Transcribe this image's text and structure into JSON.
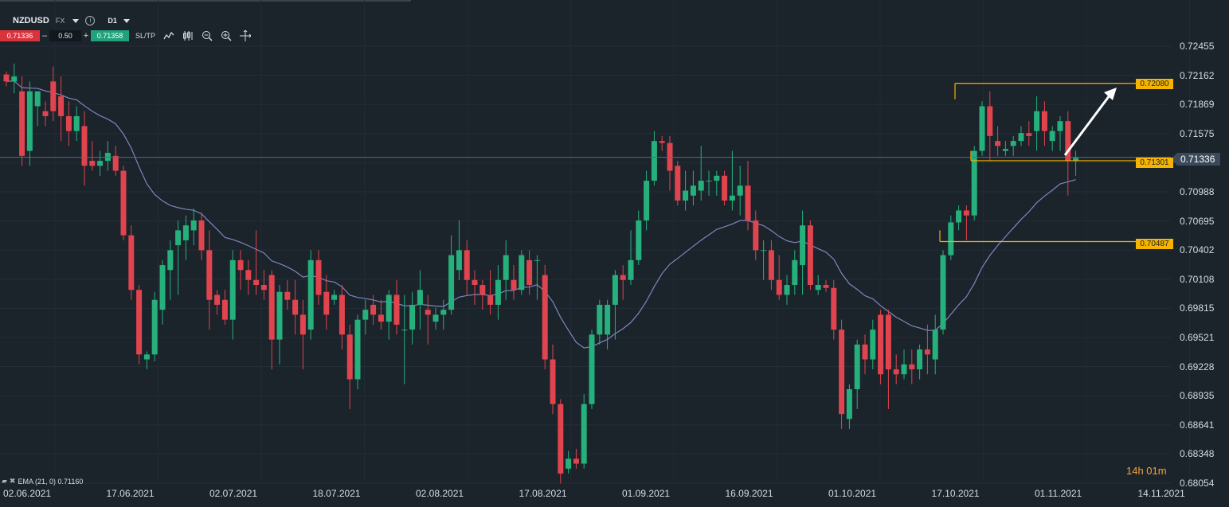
{
  "toolbar": {
    "symbol": "NZDUSD",
    "market": "FX",
    "timeframe": "D1",
    "sell_price": "0.71336",
    "lot_size": "0.50",
    "buy_price": "0.71358",
    "minus": "–",
    "plus": "+",
    "sltp_label": "SL/TP",
    "icons": [
      "line-chart-icon",
      "candles-icon",
      "zoom-out-icon",
      "zoom-in-icon",
      "crosshair-icon"
    ]
  },
  "current_price": "0.71336",
  "levels": [
    "0.72080",
    "0.71301",
    "0.70487"
  ],
  "timer": "14h 01m",
  "ema_legend": "EMA (21, 0) 0.71160",
  "colors": {
    "background": "#1b232b",
    "bull": "#26b07c",
    "bear": "#e0444e",
    "ema": "#7f87c0",
    "level": "#f4b400",
    "arrow": "#ffffff",
    "current_price_line": "#5a6b7c"
  },
  "chart_data": {
    "type": "candlestick",
    "symbol": "NZDUSD",
    "timeframe": "D1",
    "y_ticks": [
      "0.72455",
      "0.72162",
      "0.71869",
      "0.71575",
      "0.71282",
      "0.70988",
      "0.70695",
      "0.70402",
      "0.70108",
      "0.69815",
      "0.69521",
      "0.69228",
      "0.68935",
      "0.68641",
      "0.68348",
      "0.68054"
    ],
    "x_ticks": [
      "02.06.2021",
      "17.06.2021",
      "02.07.2021",
      "18.07.2021",
      "02.08.2021",
      "17.08.2021",
      "01.09.2021",
      "16.09.2021",
      "01.10.2021",
      "17.10.2021",
      "01.11.2021",
      "14.11.2021"
    ],
    "ylim": [
      0.68054,
      0.72455
    ],
    "current_price": 0.71336,
    "ema": {
      "period": 21,
      "value": 0.7116
    },
    "candles": [
      [
        0.7217,
        0.722,
        0.7205,
        0.721
      ],
      [
        0.721,
        0.7228,
        0.7198,
        0.7215
      ],
      [
        0.72,
        0.7215,
        0.7125,
        0.7135
      ],
      [
        0.714,
        0.721,
        0.7125,
        0.72
      ],
      [
        0.7185,
        0.72,
        0.7165,
        0.72
      ],
      [
        0.718,
        0.719,
        0.7165,
        0.7175
      ],
      [
        0.721,
        0.7225,
        0.717,
        0.718
      ],
      [
        0.7195,
        0.7215,
        0.715,
        0.7175
      ],
      [
        0.7175,
        0.719,
        0.7145,
        0.716
      ],
      [
        0.716,
        0.7185,
        0.715,
        0.7175
      ],
      [
        0.7165,
        0.718,
        0.7105,
        0.7125
      ],
      [
        0.713,
        0.715,
        0.712,
        0.7125
      ],
      [
        0.7125,
        0.714,
        0.7115,
        0.713
      ],
      [
        0.713,
        0.715,
        0.712,
        0.7138
      ],
      [
        0.7135,
        0.7145,
        0.7115,
        0.712
      ],
      [
        0.712,
        0.7125,
        0.705,
        0.7055
      ],
      [
        0.7055,
        0.7065,
        0.699,
        0.7
      ],
      [
        0.7,
        0.7005,
        0.6925,
        0.6935
      ],
      [
        0.693,
        0.6938,
        0.692,
        0.6935
      ],
      [
        0.6935,
        0.6998,
        0.6928,
        0.699
      ],
      [
        0.698,
        0.703,
        0.6965,
        0.7025
      ],
      [
        0.702,
        0.705,
        0.699,
        0.704
      ],
      [
        0.7045,
        0.707,
        0.6995,
        0.706
      ],
      [
        0.705,
        0.7075,
        0.703,
        0.7065
      ],
      [
        0.706,
        0.7082,
        0.7045,
        0.707
      ],
      [
        0.707,
        0.7078,
        0.703,
        0.704
      ],
      [
        0.704,
        0.706,
        0.696,
        0.699
      ],
      [
        0.6995,
        0.7,
        0.6975,
        0.6985
      ],
      [
        0.699,
        0.7,
        0.6965,
        0.697
      ],
      [
        0.697,
        0.704,
        0.695,
        0.703
      ],
      [
        0.703,
        0.704,
        0.7,
        0.702
      ],
      [
        0.702,
        0.703,
        0.6995,
        0.701
      ],
      [
        0.701,
        0.706,
        0.6995,
        0.7005
      ],
      [
        0.7005,
        0.702,
        0.699,
        0.7
      ],
      [
        0.7015,
        0.702,
        0.692,
        0.695
      ],
      [
        0.695,
        0.7005,
        0.6925,
        0.6998
      ],
      [
        0.6998,
        0.701,
        0.698,
        0.699
      ],
      [
        0.699,
        0.701,
        0.6955,
        0.6975
      ],
      [
        0.6975,
        0.699,
        0.692,
        0.6955
      ],
      [
        0.696,
        0.704,
        0.695,
        0.703
      ],
      [
        0.703,
        0.704,
        0.6985,
        0.6995
      ],
      [
        0.6998,
        0.7015,
        0.696,
        0.6975
      ],
      [
        0.699,
        0.7,
        0.6985,
        0.6995
      ],
      [
        0.6995,
        0.7005,
        0.694,
        0.6955
      ],
      [
        0.6955,
        0.6965,
        0.688,
        0.691
      ],
      [
        0.691,
        0.6975,
        0.69,
        0.697
      ],
      [
        0.697,
        0.699,
        0.6955,
        0.698
      ],
      [
        0.6985,
        0.6995,
        0.6965,
        0.6975
      ],
      [
        0.6975,
        0.699,
        0.696,
        0.6968
      ],
      [
        0.6968,
        0.7,
        0.695,
        0.6995
      ],
      [
        0.6995,
        0.701,
        0.6955,
        0.6965
      ],
      [
        0.696,
        0.6995,
        0.6905,
        0.696
      ],
      [
        0.696,
        0.6998,
        0.6945,
        0.6985
      ],
      [
        0.6985,
        0.702,
        0.696,
        0.7
      ],
      [
        0.698,
        0.6995,
        0.6945,
        0.6975
      ],
      [
        0.6968,
        0.6982,
        0.696,
        0.6975
      ],
      [
        0.6975,
        0.699,
        0.696,
        0.698
      ],
      [
        0.698,
        0.7055,
        0.6975,
        0.7035
      ],
      [
        0.702,
        0.707,
        0.701,
        0.704
      ],
      [
        0.704,
        0.705,
        0.6995,
        0.701
      ],
      [
        0.701,
        0.702,
        0.6985,
        0.7005
      ],
      [
        0.7005,
        0.701,
        0.698,
        0.6995
      ],
      [
        0.6995,
        0.702,
        0.6975,
        0.6985
      ],
      [
        0.6985,
        0.7025,
        0.697,
        0.701
      ],
      [
        0.701,
        0.705,
        0.699,
        0.7035
      ],
      [
        0.701,
        0.7025,
        0.699,
        0.7
      ],
      [
        0.7,
        0.704,
        0.6995,
        0.7035
      ],
      [
        0.703,
        0.704,
        0.6995,
        0.7005
      ],
      [
        0.703,
        0.7035,
        0.699,
        0.703
      ],
      [
        0.7015,
        0.7025,
        0.692,
        0.693
      ],
      [
        0.693,
        0.6945,
        0.6875,
        0.6885
      ],
      [
        0.6885,
        0.689,
        0.6805,
        0.6815
      ],
      [
        0.682,
        0.6838,
        0.6815,
        0.683
      ],
      [
        0.683,
        0.684,
        0.682,
        0.6825
      ],
      [
        0.6825,
        0.6895,
        0.682,
        0.6885
      ],
      [
        0.6885,
        0.696,
        0.688,
        0.6955
      ],
      [
        0.6955,
        0.699,
        0.6945,
        0.6985
      ],
      [
        0.6955,
        0.699,
        0.694,
        0.6985
      ],
      [
        0.6985,
        0.702,
        0.695,
        0.7015
      ],
      [
        0.7015,
        0.7025,
        0.699,
        0.701
      ],
      [
        0.701,
        0.706,
        0.7005,
        0.703
      ],
      [
        0.703,
        0.708,
        0.7025,
        0.707
      ],
      [
        0.707,
        0.712,
        0.706,
        0.711
      ],
      [
        0.711,
        0.716,
        0.7105,
        0.715
      ],
      [
        0.715,
        0.7155,
        0.714,
        0.7148
      ],
      [
        0.7148,
        0.7155,
        0.71,
        0.712
      ],
      [
        0.7125,
        0.713,
        0.7085,
        0.709
      ],
      [
        0.709,
        0.712,
        0.708,
        0.71
      ],
      [
        0.7095,
        0.712,
        0.7085,
        0.7105
      ],
      [
        0.71,
        0.7145,
        0.709,
        0.711
      ],
      [
        0.711,
        0.712,
        0.7095,
        0.711
      ],
      [
        0.711,
        0.712,
        0.7095,
        0.7115
      ],
      [
        0.7115,
        0.712,
        0.7085,
        0.709
      ],
      [
        0.709,
        0.714,
        0.708,
        0.7095
      ],
      [
        0.7095,
        0.7125,
        0.7075,
        0.7105
      ],
      [
        0.7105,
        0.713,
        0.706,
        0.707
      ],
      [
        0.707,
        0.708,
        0.703,
        0.704
      ],
      [
        0.704,
        0.705,
        0.701,
        0.704
      ],
      [
        0.704,
        0.705,
        0.7,
        0.701
      ],
      [
        0.701,
        0.7035,
        0.699,
        0.6995
      ],
      [
        0.6995,
        0.7015,
        0.6985,
        0.7005
      ],
      [
        0.7005,
        0.704,
        0.6995,
        0.703
      ],
      [
        0.7025,
        0.708,
        0.6995,
        0.7065
      ],
      [
        0.7065,
        0.707,
        0.7,
        0.7005
      ],
      [
        0.7,
        0.7015,
        0.6995,
        0.7005
      ],
      [
        0.7005,
        0.701,
        0.6998,
        0.7002
      ],
      [
        0.7002,
        0.701,
        0.695,
        0.696
      ],
      [
        0.696,
        0.697,
        0.686,
        0.6875
      ],
      [
        0.687,
        0.6905,
        0.686,
        0.69
      ],
      [
        0.69,
        0.695,
        0.688,
        0.6945
      ],
      [
        0.6945,
        0.6955,
        0.6915,
        0.693
      ],
      [
        0.693,
        0.697,
        0.692,
        0.696
      ],
      [
        0.6975,
        0.698,
        0.6905,
        0.6915
      ],
      [
        0.6975,
        0.698,
        0.688,
        0.692
      ],
      [
        0.692,
        0.6935,
        0.6905,
        0.6915
      ],
      [
        0.6915,
        0.694,
        0.691,
        0.6925
      ],
      [
        0.6925,
        0.694,
        0.6905,
        0.692
      ],
      [
        0.692,
        0.6945,
        0.691,
        0.694
      ],
      [
        0.694,
        0.6965,
        0.6915,
        0.6935
      ],
      [
        0.693,
        0.6975,
        0.6915,
        0.696
      ],
      [
        0.696,
        0.704,
        0.6955,
        0.7035
      ],
      [
        0.7035,
        0.7075,
        0.703,
        0.7068
      ],
      [
        0.7068,
        0.7085,
        0.706,
        0.708
      ],
      [
        0.708,
        0.7085,
        0.705,
        0.7075
      ],
      [
        0.7075,
        0.7145,
        0.707,
        0.714
      ],
      [
        0.714,
        0.719,
        0.7135,
        0.7185
      ],
      [
        0.7185,
        0.72,
        0.713,
        0.7155
      ],
      [
        0.715,
        0.7165,
        0.7135,
        0.7145
      ],
      [
        0.714,
        0.715,
        0.7135,
        0.7142
      ],
      [
        0.7145,
        0.7155,
        0.7135,
        0.715
      ],
      [
        0.715,
        0.7165,
        0.7145,
        0.7158
      ],
      [
        0.7158,
        0.717,
        0.7145,
        0.7155
      ],
      [
        0.716,
        0.7195,
        0.714,
        0.718
      ],
      [
        0.718,
        0.719,
        0.7145,
        0.716
      ],
      [
        0.715,
        0.7165,
        0.714,
        0.716
      ],
      [
        0.716,
        0.7175,
        0.714,
        0.717
      ],
      [
        0.717,
        0.718,
        0.7095,
        0.713
      ],
      [
        0.713,
        0.714,
        0.7115,
        0.7133
      ]
    ]
  }
}
